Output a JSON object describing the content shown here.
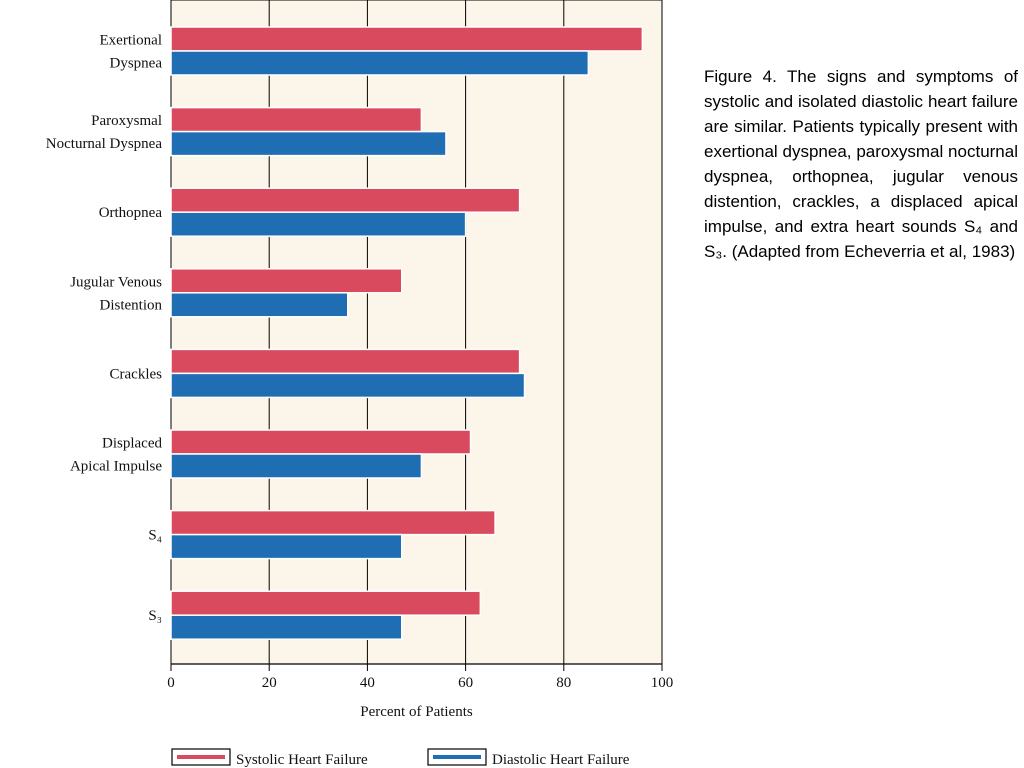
{
  "chart_data": {
    "type": "bar",
    "orientation": "horizontal",
    "categories": [
      [
        "Exertional",
        "Dyspnea"
      ],
      [
        "Paroxysmal",
        "Nocturnal Dyspnea"
      ],
      [
        "Orthopnea"
      ],
      [
        "Jugular Venous",
        "Distention"
      ],
      [
        "Crackles"
      ],
      [
        "Displaced",
        "Apical Impulse"
      ],
      [
        "S₄"
      ],
      [
        "S₃"
      ]
    ],
    "series": [
      {
        "name": "Systolic Heart Failure",
        "color": "#d94a5e",
        "values": [
          96,
          51,
          71,
          47,
          71,
          61,
          66,
          63
        ]
      },
      {
        "name": "Diastolic Heart Failure",
        "color": "#1f6eb4",
        "values": [
          85,
          56,
          60,
          36,
          72,
          51,
          47,
          47
        ]
      }
    ],
    "xlabel": "Percent of Patients",
    "xlim": [
      0,
      100
    ],
    "xticks": [
      "0",
      "20",
      "40",
      "60",
      "80",
      "100"
    ],
    "grid": "vertical",
    "legend": "bottom",
    "background": "#fbf6e9"
  },
  "caption": "Figure 4. The signs and symptoms of systolic and isolated diastolic heart failure are similar. Patients typically present with exertional dyspnea, paroxysmal nocturnal dyspnea, orthopnea, jugular venous distention, crackles, a displaced apical impulse, and extra heart sounds S₄ and S₃. (Adapted from Echeverria et al, 1983)"
}
